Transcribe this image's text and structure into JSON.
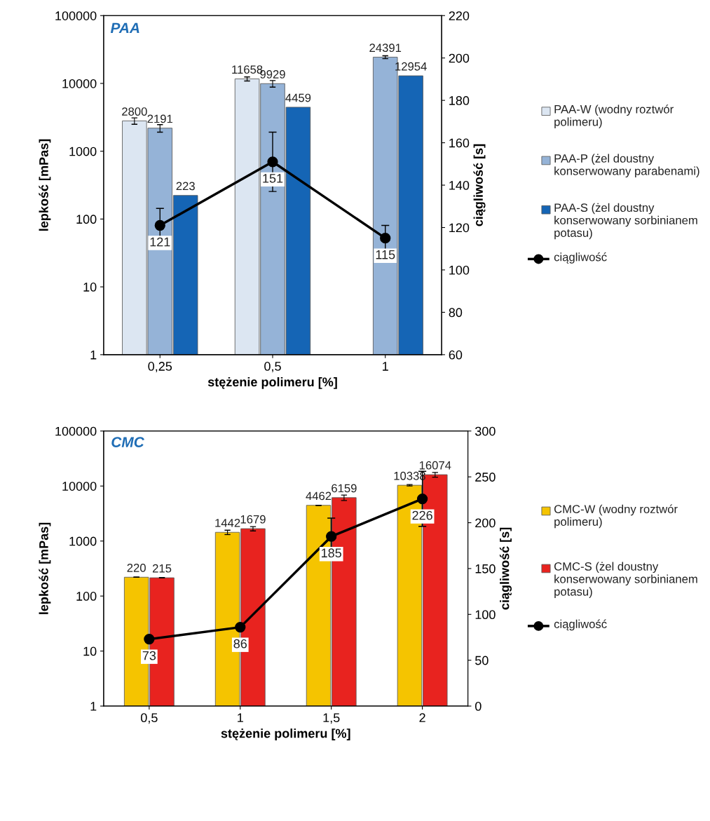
{
  "chart_data": [
    {
      "type": "bar",
      "title": "PAA",
      "xlabel": "stężenie polimeru [%]",
      "ylabel": "lepkość [mPas]",
      "y2label": "ciągliwość [s]",
      "categories": [
        "0,25",
        "0,5",
        "1"
      ],
      "log": "y",
      "ylim": [
        1,
        100000
      ],
      "yticks": [
        1,
        10,
        100,
        1000,
        10000,
        100000
      ],
      "y2lim": [
        60,
        220
      ],
      "y2ticks": [
        60,
        80,
        100,
        120,
        140,
        160,
        180,
        200,
        220
      ],
      "data_labels": true,
      "legend": "right",
      "grid": false,
      "series": [
        {
          "name": "PAA-W (wodny roztwór polimeru)",
          "color": "#dce6f2",
          "values": [
            2800,
            11658,
            null
          ],
          "errors": [
            300,
            800,
            null
          ]
        },
        {
          "name": "PAA-P (żel doustny konserwowany parabenami)",
          "color": "#95b3d7",
          "values": [
            2191,
            9929,
            24391
          ],
          "errors": [
            280,
            1100,
            1200
          ]
        },
        {
          "name": "PAA-S (żel doustny konserwowany sorbinianem potasu)",
          "color": "#1565b5",
          "values": [
            223,
            4459,
            12954
          ]
        },
        {
          "name": "ciągliwość",
          "type": "line",
          "axis": "y2",
          "color": "#000000",
          "marker": "circle",
          "values": [
            121,
            151,
            115
          ],
          "errors": [
            8,
            14,
            6
          ]
        }
      ]
    },
    {
      "type": "bar",
      "title": "CMC",
      "xlabel": "stężenie polimeru [%]",
      "ylabel": "lepkość [mPas]",
      "y2label": "ciągliwość [s]",
      "categories": [
        "0,5",
        "1",
        "1,5",
        "2"
      ],
      "log": "y",
      "ylim": [
        1,
        100000
      ],
      "yticks": [
        1,
        10,
        100,
        1000,
        10000,
        100000
      ],
      "y2lim": [
        0,
        300
      ],
      "y2ticks": [
        0,
        50,
        100,
        150,
        200,
        250,
        300
      ],
      "data_labels": true,
      "legend": "right",
      "grid": false,
      "series": [
        {
          "name": "CMC-W (wodny roztwór polimeru)",
          "color": "#f5c400",
          "values": [
            220,
            1442,
            4462,
            10338
          ],
          "errors": [
            null,
            130,
            null,
            300
          ]
        },
        {
          "name": "CMC-S (żel doustny konserwowany sorbinianem potasu)",
          "color": "#e8231f",
          "values": [
            215,
            1679,
            6159,
            16074
          ],
          "errors": [
            null,
            150,
            700,
            1600
          ]
        },
        {
          "name": "ciągliwość",
          "type": "line",
          "axis": "y2",
          "color": "#000000",
          "marker": "circle",
          "values": [
            73,
            86,
            185,
            226
          ],
          "errors": [
            null,
            null,
            20,
            30
          ]
        }
      ]
    }
  ]
}
